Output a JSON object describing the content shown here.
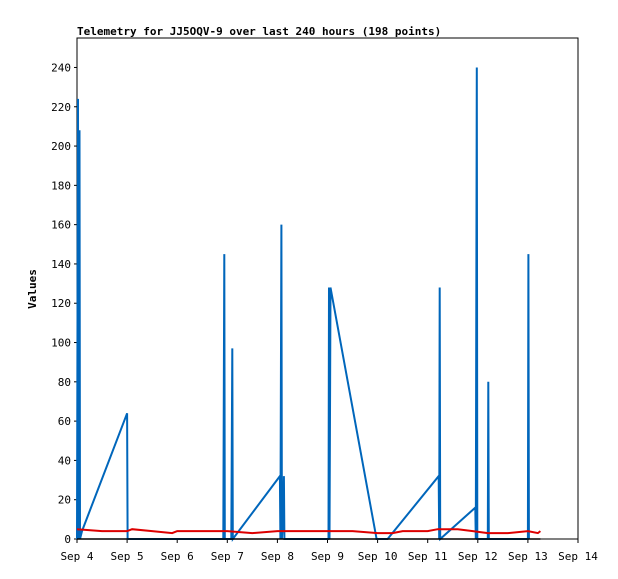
{
  "chart_data": {
    "type": "line",
    "title": "Telemetry for JJ5OQV-9 over last 240 hours (198 points)",
    "xlabel": "",
    "ylabel": "Values",
    "x_ticks": [
      "Sep 4",
      "Sep 5",
      "Sep 6",
      "Sep 7",
      "Sep 8",
      "Sep 9",
      "Sep 10",
      "Sep 11",
      "Sep 12",
      "Sep 13",
      "Sep 14"
    ],
    "y_ticks": [
      0,
      20,
      40,
      60,
      80,
      100,
      120,
      140,
      160,
      180,
      200,
      220,
      240
    ],
    "xlim": [
      0,
      10
    ],
    "ylim": [
      0,
      255
    ],
    "grid": false,
    "legend": "none",
    "series": [
      {
        "color": "#0066bb",
        "points": [
          [
            0.0,
            0
          ],
          [
            0.02,
            224
          ],
          [
            0.03,
            0
          ],
          [
            0.05,
            208
          ],
          [
            0.06,
            0
          ],
          [
            0.1,
            4
          ],
          [
            1.0,
            64
          ],
          [
            1.01,
            0
          ],
          [
            2.92,
            0
          ],
          [
            2.94,
            145
          ],
          [
            2.95,
            0
          ],
          [
            3.08,
            0
          ],
          [
            3.1,
            97
          ],
          [
            3.11,
            0
          ],
          [
            4.05,
            32
          ],
          [
            4.06,
            0
          ],
          [
            4.08,
            160
          ],
          [
            4.09,
            0
          ],
          [
            4.12,
            15
          ],
          [
            4.13,
            32
          ],
          [
            4.14,
            0
          ],
          [
            5.02,
            0
          ],
          [
            5.03,
            128
          ],
          [
            5.04,
            0
          ],
          [
            5.06,
            128
          ],
          [
            5.98,
            0
          ],
          [
            6.2,
            0
          ],
          [
            7.22,
            32
          ],
          [
            7.23,
            0
          ],
          [
            7.24,
            128
          ],
          [
            7.25,
            0
          ],
          [
            7.95,
            16
          ],
          [
            7.96,
            0
          ],
          [
            7.98,
            240
          ],
          [
            7.99,
            0
          ],
          [
            8.2,
            0
          ],
          [
            8.21,
            80
          ],
          [
            8.22,
            0
          ],
          [
            9.0,
            0
          ],
          [
            9.01,
            145
          ],
          [
            9.02,
            0
          ]
        ]
      },
      {
        "color": "#dd0000",
        "points": [
          [
            0.0,
            5
          ],
          [
            0.5,
            4
          ],
          [
            1.0,
            4
          ],
          [
            1.1,
            5
          ],
          [
            1.5,
            4
          ],
          [
            1.9,
            3
          ],
          [
            2.0,
            4
          ],
          [
            2.5,
            4
          ],
          [
            3.0,
            4
          ],
          [
            3.5,
            3
          ],
          [
            4.0,
            4
          ],
          [
            4.5,
            4
          ],
          [
            5.0,
            4
          ],
          [
            5.5,
            4
          ],
          [
            6.0,
            3
          ],
          [
            6.3,
            3
          ],
          [
            6.5,
            4
          ],
          [
            7.0,
            4
          ],
          [
            7.2,
            5
          ],
          [
            7.6,
            5
          ],
          [
            7.9,
            4
          ],
          [
            8.2,
            3
          ],
          [
            8.6,
            3
          ],
          [
            9.0,
            4
          ],
          [
            9.2,
            3
          ],
          [
            9.25,
            4
          ]
        ]
      },
      {
        "color": "#000000",
        "points": [
          [
            0.0,
            0
          ],
          [
            9.25,
            0
          ]
        ]
      }
    ]
  }
}
